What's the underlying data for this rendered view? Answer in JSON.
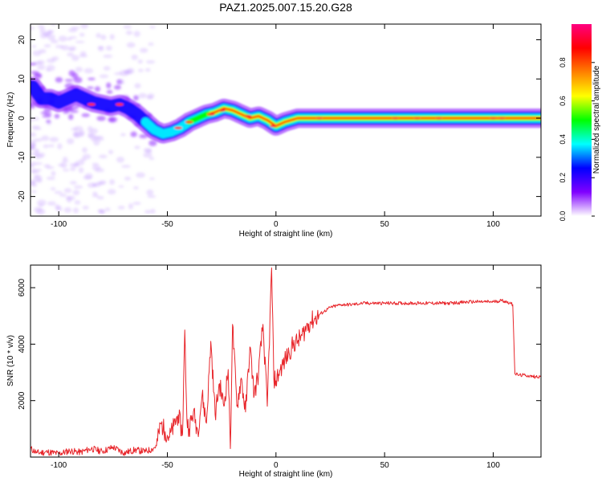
{
  "title": "PAZ1.2025.007.15.20.G28",
  "chart_data": [
    {
      "type": "heatmap",
      "xlabel": "Height of straight line (km)",
      "ylabel": "Frequency (Hz)",
      "xlim": [
        -113,
        122
      ],
      "ylim": [
        -25,
        24
      ],
      "xticks": [
        -100,
        -50,
        0,
        50,
        100
      ],
      "xtick_labels": [
        "-100",
        "-50",
        "0",
        "50",
        "100"
      ],
      "yticks": [
        -20,
        -10,
        0,
        10,
        20
      ],
      "ytick_labels": [
        "-20",
        "-10",
        "0",
        "10",
        "20"
      ],
      "grid": false,
      "ridge": {
        "x": [
          -112,
          -108,
          -104,
          -100,
          -96,
          -92,
          -88,
          -84,
          -80,
          -76,
          -72,
          -68,
          -64,
          -60,
          -56,
          -52,
          -48,
          -44,
          -40,
          -36,
          -32,
          -28,
          -24,
          -20,
          -16,
          -12,
          -8,
          -4,
          0,
          4,
          10,
          20,
          40,
          60,
          80,
          100,
          122
        ],
        "frequency": [
          8,
          5,
          5,
          4,
          5,
          6,
          5,
          4,
          3.5,
          3,
          3.5,
          2.5,
          1,
          -1,
          -3,
          -4,
          -3.5,
          -2.5,
          -1,
          0,
          1,
          1.5,
          2.5,
          2,
          1,
          0,
          0.5,
          -0.5,
          -2,
          -1,
          0,
          0,
          0,
          0,
          0,
          0,
          0
        ]
      },
      "colorbar": {
        "label": "Normalized spectral amplitude",
        "range": [
          0,
          1
        ],
        "ticks": [
          0.0,
          0.2,
          0.4,
          0.6,
          0.8
        ],
        "tick_labels": [
          "0.0",
          "0.2",
          "0.4",
          "0.6",
          "0.8"
        ],
        "colors": [
          "#ffffff",
          "#8000ff",
          "#0000ff",
          "#00ffff",
          "#00ff00",
          "#ffff00",
          "#ff8000",
          "#ff0000",
          "#ff0080"
        ]
      }
    },
    {
      "type": "line",
      "xlabel": "Height of straight line (km)",
      "ylabel": "SNR (10 * v/v)",
      "xlim": [
        -113,
        122
      ],
      "ylim": [
        0,
        6800
      ],
      "xticks": [
        -100,
        -50,
        0,
        50,
        100
      ],
      "xtick_labels": [
        "-100",
        "-50",
        "0",
        "50",
        "100"
      ],
      "yticks": [
        2000,
        4000,
        6000
      ],
      "ytick_labels": [
        "2000",
        "4000",
        "6000"
      ],
      "grid": false,
      "series": [
        {
          "color": "#e8262b",
          "x": [
            -113,
            -110,
            -105,
            -100,
            -95,
            -90,
            -85,
            -80,
            -75,
            -70,
            -65,
            -60,
            -57,
            -55,
            -53,
            -51,
            -49,
            -47,
            -45,
            -43,
            -42,
            -41,
            -40,
            -38,
            -36,
            -34,
            -32,
            -30,
            -28,
            -26,
            -24,
            -22,
            -21,
            -20,
            -18,
            -16,
            -14,
            -12,
            -10,
            -8,
            -6,
            -4,
            -2,
            -1,
            0,
            2,
            4,
            6,
            8,
            10,
            12,
            14,
            16,
            18,
            20,
            22,
            25,
            30,
            35,
            40,
            50,
            60,
            70,
            80,
            90,
            100,
            104,
            108,
            109,
            110,
            112,
            115,
            118,
            122
          ],
          "values": [
            300,
            150,
            180,
            120,
            220,
            170,
            300,
            200,
            350,
            150,
            250,
            200,
            280,
            400,
            1200,
            900,
            700,
            1100,
            1500,
            800,
            4500,
            1300,
            1000,
            1600,
            900,
            2200,
            1200,
            4100,
            1500,
            2600,
            1800,
            3100,
            300,
            4700,
            1800,
            2800,
            1600,
            3900,
            2200,
            3000,
            4700,
            1800,
            6700,
            2800,
            2700,
            3100,
            3400,
            3700,
            4000,
            4100,
            4300,
            4600,
            4800,
            4900,
            5050,
            5150,
            5300,
            5400,
            5400,
            5450,
            5450,
            5450,
            5450,
            5450,
            5500,
            5500,
            5550,
            5450,
            5400,
            2950,
            2900,
            2900,
            2850,
            2850
          ]
        }
      ]
    }
  ]
}
